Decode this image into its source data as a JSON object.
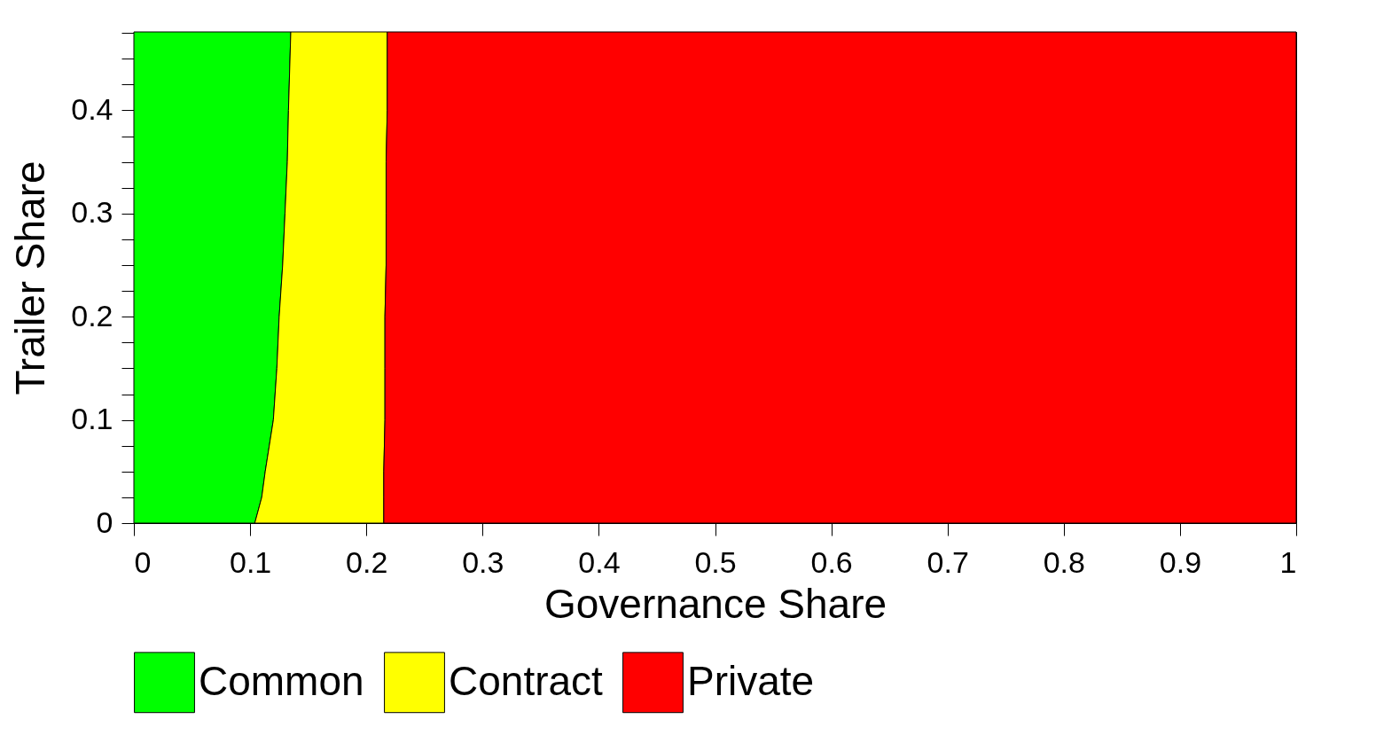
{
  "chart_data": {
    "type": "area",
    "stacked": true,
    "orientation": "horizontal",
    "xlabel": "Governance Share",
    "ylabel": "Trailer Share",
    "x": [
      0,
      0.025,
      0.05,
      0.1,
      0.15,
      0.2,
      0.25,
      0.3,
      0.35,
      0.4,
      0.476
    ],
    "series": [
      {
        "name": "Common",
        "color": "#00ff00",
        "values": [
          0.104,
          0.11,
          0.113,
          0.12,
          0.123,
          0.125,
          0.128,
          0.13,
          0.132,
          0.133,
          0.135
        ]
      },
      {
        "name": "Contract",
        "color": "#ffff00",
        "values": [
          0.111,
          0.105,
          0.102,
          0.096,
          0.093,
          0.091,
          0.089,
          0.087,
          0.085,
          0.085,
          0.083
        ]
      },
      {
        "name": "Private",
        "color": "#ff0000",
        "values": [
          0.785,
          0.785,
          0.785,
          0.784,
          0.784,
          0.784,
          0.783,
          0.783,
          0.783,
          0.782,
          0.782
        ]
      }
    ],
    "xlim": [
      0,
      1
    ],
    "xticks": [
      0,
      0.1,
      0.2,
      0.3,
      0.4,
      0.5,
      0.6,
      0.7,
      0.8,
      0.9,
      1
    ],
    "ylim": [
      0,
      0.476
    ],
    "yticks": [
      0,
      {
        "value": 0.025,
        "label": null
      },
      {
        "value": 0.05,
        "label": null
      },
      {
        "value": 0.075,
        "label": null
      },
      0.1,
      {
        "value": 0.125,
        "label": null
      },
      {
        "value": 0.15,
        "label": null
      },
      {
        "value": 0.175,
        "label": null
      },
      0.2,
      {
        "value": 0.225,
        "label": null
      },
      {
        "value": 0.25,
        "label": null
      },
      {
        "value": 0.275,
        "label": null
      },
      0.3,
      {
        "value": 0.325,
        "label": null
      },
      {
        "value": 0.35,
        "label": null
      },
      {
        "value": 0.375,
        "label": null
      },
      0.4,
      {
        "value": 0.425,
        "label": null
      },
      {
        "value": 0.45,
        "label": null
      },
      {
        "value": 0.475,
        "label": null
      }
    ],
    "grid": false,
    "legend": "bottom"
  }
}
